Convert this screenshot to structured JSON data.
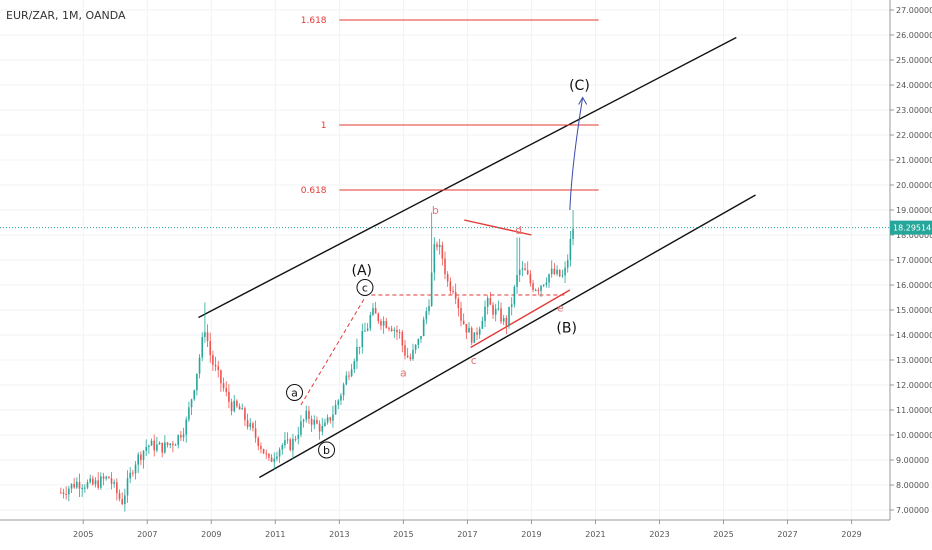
{
  "header": {
    "symbol": "EUR/ZAR, 1M, OANDA"
  },
  "chart_data": {
    "type": "candlestick",
    "symbol": "EUR/ZAR",
    "interval": "1M",
    "source": "OANDA",
    "ylim": [
      6.6,
      27.4
    ],
    "xlim": [
      2002.4,
      2030.2
    ],
    "y_ticks": [
      "7.00000",
      "8.00000",
      "9.00000",
      "10.00000",
      "11.00000",
      "12.00000",
      "13.00000",
      "14.00000",
      "15.00000",
      "16.00000",
      "17.00000",
      "18.00000",
      "19.00000",
      "20.00000",
      "21.00000",
      "22.00000",
      "23.00000",
      "24.00000",
      "25.00000",
      "26.00000",
      "27.00000"
    ],
    "x_ticks": [
      "2005",
      "2007",
      "2009",
      "2011",
      "2013",
      "2015",
      "2017",
      "2019",
      "2021",
      "2023",
      "2025",
      "2027",
      "2029"
    ],
    "last_price": {
      "value": 18.29514,
      "label": "18.29514",
      "color": "#26a69a"
    },
    "colors": {
      "up": "#26a69a",
      "down": "#ef5350",
      "channel": "#111111",
      "fib": "#e53935",
      "projection": "#3949ab",
      "wave_red": "#e57373"
    },
    "price_path": [
      [
        2004.3,
        7.7
      ],
      [
        2004.8,
        8.1
      ],
      [
        2005.3,
        8.0
      ],
      [
        2005.8,
        8.3
      ],
      [
        2006.2,
        7.3
      ],
      [
        2006.6,
        8.9
      ],
      [
        2007.0,
        9.6
      ],
      [
        2007.5,
        9.5
      ],
      [
        2007.9,
        9.8
      ],
      [
        2008.2,
        10.4
      ],
      [
        2008.5,
        12.2
      ],
      [
        2008.8,
        14.3
      ],
      [
        2009.0,
        13.0
      ],
      [
        2009.3,
        12.1
      ],
      [
        2009.6,
        11.2
      ],
      [
        2009.9,
        11.0
      ],
      [
        2010.2,
        10.3
      ],
      [
        2010.5,
        9.7
      ],
      [
        2010.8,
        8.9
      ],
      [
        2011.0,
        9.3
      ],
      [
        2011.2,
        9.6
      ],
      [
        2011.5,
        9.6
      ],
      [
        2011.8,
        10.4
      ],
      [
        2012.0,
        10.8
      ],
      [
        2012.2,
        10.5
      ],
      [
        2012.5,
        10.2
      ],
      [
        2012.8,
        10.9
      ],
      [
        2013.0,
        11.5
      ],
      [
        2013.3,
        12.6
      ],
      [
        2013.6,
        13.6
      ],
      [
        2013.9,
        14.4
      ],
      [
        2014.0,
        14.9
      ],
      [
        2014.3,
        14.6
      ],
      [
        2014.6,
        14.4
      ],
      [
        2014.9,
        14.0
      ],
      [
        2015.0,
        13.4
      ],
      [
        2015.2,
        13.0
      ],
      [
        2015.5,
        13.8
      ],
      [
        2015.8,
        15.4
      ],
      [
        2016.0,
        17.8
      ],
      [
        2016.2,
        17.2
      ],
      [
        2016.4,
        16.0
      ],
      [
        2016.6,
        15.9
      ],
      [
        2016.8,
        14.7
      ],
      [
        2017.0,
        14.2
      ],
      [
        2017.2,
        13.8
      ],
      [
        2017.4,
        14.5
      ],
      [
        2017.6,
        15.3
      ],
      [
        2017.8,
        15.0
      ],
      [
        2018.0,
        14.8
      ],
      [
        2018.2,
        14.4
      ],
      [
        2018.4,
        15.4
      ],
      [
        2018.6,
        16.6
      ],
      [
        2018.8,
        16.5
      ],
      [
        2019.0,
        16.0
      ],
      [
        2019.2,
        15.9
      ],
      [
        2019.4,
        16.2
      ],
      [
        2019.6,
        16.5
      ],
      [
        2019.8,
        16.4
      ],
      [
        2020.0,
        16.3
      ],
      [
        2020.1,
        16.8
      ],
      [
        2020.2,
        17.6
      ],
      [
        2020.3,
        18.3
      ]
    ],
    "price_peaks": [
      [
        2008.8,
        15.3
      ],
      [
        2015.9,
        18.9
      ],
      [
        2018.6,
        17.9
      ],
      [
        2020.3,
        19.0
      ]
    ],
    "channel_upper": [
      [
        2008.6,
        14.7
      ],
      [
        2025.4,
        25.9
      ]
    ],
    "channel_lower": [
      [
        2010.5,
        8.3
      ],
      [
        2026.0,
        19.6
      ]
    ],
    "fib_levels": [
      {
        "label": "1.618",
        "value": 26.6
      },
      {
        "label": "1",
        "value": 22.4
      },
      {
        "label": "0.618",
        "value": 19.8
      }
    ],
    "projection_arrow": [
      [
        2020.2,
        19.0
      ],
      [
        2020.6,
        23.5
      ]
    ],
    "triangle_top": [
      [
        2016.9,
        18.6
      ],
      [
        2019.0,
        18.0
      ]
    ],
    "triangle_bottom": [
      [
        2017.1,
        13.5
      ],
      [
        2020.2,
        15.8
      ]
    ],
    "dashed_level": {
      "value": 15.6,
      "x0": 2014.0,
      "x1": 2020.1
    },
    "dashed_leg": [
      [
        2011.8,
        11.2
      ],
      [
        2013.8,
        15.5
      ]
    ],
    "waves": [
      {
        "label": "(A)",
        "x": 2013.7,
        "y": 16.6,
        "style": "big"
      },
      {
        "label": "(B)",
        "x": 2020.1,
        "y": 14.3,
        "style": "big"
      },
      {
        "label": "(C)",
        "x": 2020.5,
        "y": 24.0,
        "style": "big"
      },
      {
        "label": "a",
        "x": 2011.6,
        "y": 11.7,
        "style": "circle"
      },
      {
        "label": "b",
        "x": 2012.6,
        "y": 9.4,
        "style": "circle"
      },
      {
        "label": "c",
        "x": 2013.8,
        "y": 15.9,
        "style": "circle"
      },
      {
        "label": "a",
        "x": 2015.0,
        "y": 12.5,
        "style": "red"
      },
      {
        "label": "b",
        "x": 2016.0,
        "y": 19.0,
        "style": "red"
      },
      {
        "label": "c",
        "x": 2017.2,
        "y": 13.0,
        "style": "red"
      },
      {
        "label": "d",
        "x": 2018.6,
        "y": 18.2,
        "style": "red"
      },
      {
        "label": "e",
        "x": 2019.9,
        "y": 15.1,
        "style": "red"
      }
    ]
  }
}
